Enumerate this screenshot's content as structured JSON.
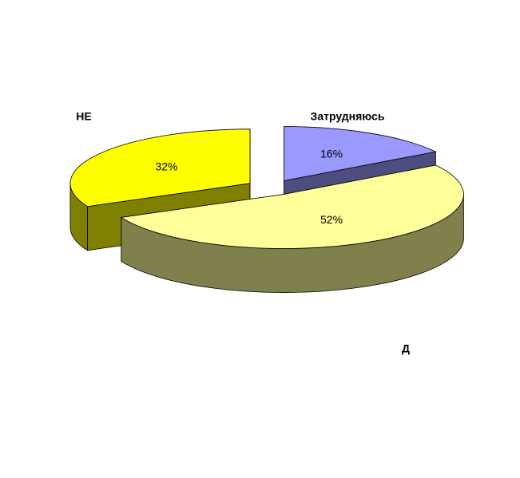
{
  "chart_data": {
    "type": "pie",
    "categories": [
      "Затрудняюсь",
      "Д",
      "НЕ"
    ],
    "values": [
      16,
      52,
      32
    ],
    "value_labels": [
      "16%",
      "52%",
      "32%"
    ],
    "colors": [
      "#9999ff",
      "#ffff99",
      "#ffff00"
    ]
  }
}
